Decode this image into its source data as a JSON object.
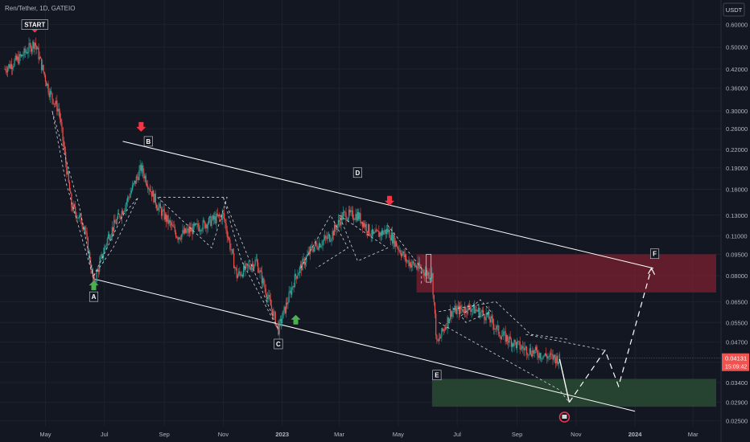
{
  "header": {
    "symbol": "Ren/Tether, 1D, GATEIO",
    "currency_button": "USDT"
  },
  "price_axis": {
    "ticks": [
      "0.60000",
      "0.50000",
      "0.42000",
      "0.36000",
      "0.30000",
      "0.26000",
      "0.22000",
      "0.19000",
      "0.16000",
      "0.13000",
      "0.11000",
      "0.09500",
      "0.08000",
      "0.06500",
      "0.05500",
      "0.04700",
      "0.04000",
      "0.03400",
      "0.02900",
      "0.02500"
    ],
    "last_price": "0.04131",
    "countdown": "15:09:42"
  },
  "time_axis": {
    "ticks": [
      "May",
      "Jul",
      "Sep",
      "Nov",
      "2023",
      "Mar",
      "May",
      "Jul",
      "Sep",
      "Nov",
      "2024",
      "Mar"
    ]
  },
  "annotations": {
    "labels": [
      "START",
      "A",
      "B",
      "C",
      "D",
      "E",
      "F"
    ]
  },
  "colors": {
    "background": "#131722",
    "up_candle": "#26a69a",
    "down_candle": "#ef5350",
    "trendline": "#ffffff",
    "resistance_zone": "#7d2030",
    "support_zone": "#2a4a32",
    "arrow_down": "#f23645",
    "arrow_up": "#4caf50"
  },
  "chart_data": {
    "type": "candlestick",
    "title": "Ren/Tether, 1D, GATEIO",
    "ylabel": "USDT",
    "y_scale": "log",
    "ylim": [
      0.024,
      0.65
    ],
    "x_range": [
      "2022-03-20",
      "2024-03-25"
    ],
    "key_points": [
      {
        "date": "2022-04-20",
        "price": 0.52,
        "label": "START"
      },
      {
        "date": "2022-06-20",
        "price": 0.075,
        "label": "A"
      },
      {
        "date": "2022-08-08",
        "price": 0.235,
        "label": "B"
      },
      {
        "date": "2022-12-28",
        "price": 0.052,
        "label": "C"
      },
      {
        "date": "2023-03-20",
        "price": 0.165,
        "label": "D"
      },
      {
        "date": "2023-06-10",
        "price": 0.04,
        "label": "E"
      },
      {
        "date": "2024-01-18",
        "price": 0.085,
        "label": "F"
      }
    ],
    "price_path": [
      [
        "2022-03-20",
        0.42
      ],
      [
        "2022-04-05",
        0.46
      ],
      [
        "2022-04-20",
        0.52
      ],
      [
        "2022-05-05",
        0.35
      ],
      [
        "2022-05-15",
        0.3
      ],
      [
        "2022-05-28",
        0.14
      ],
      [
        "2022-06-10",
        0.12
      ],
      [
        "2022-06-20",
        0.075
      ],
      [
        "2022-07-05",
        0.11
      ],
      [
        "2022-07-22",
        0.14
      ],
      [
        "2022-08-08",
        0.19
      ],
      [
        "2022-08-25",
        0.14
      ],
      [
        "2022-09-15",
        0.11
      ],
      [
        "2022-10-10",
        0.12
      ],
      [
        "2022-11-01",
        0.13
      ],
      [
        "2022-11-15",
        0.08
      ],
      [
        "2022-12-05",
        0.09
      ],
      [
        "2022-12-28",
        0.052
      ],
      [
        "2023-01-15",
        0.08
      ],
      [
        "2023-02-01",
        0.1
      ],
      [
        "2023-02-20",
        0.11
      ],
      [
        "2023-03-05",
        0.13
      ],
      [
        "2023-03-20",
        0.13
      ],
      [
        "2023-04-05",
        0.11
      ],
      [
        "2023-04-20",
        0.115
      ],
      [
        "2023-05-10",
        0.09
      ],
      [
        "2023-06-05",
        0.08
      ],
      [
        "2023-06-10",
        0.046
      ],
      [
        "2023-06-25",
        0.06
      ],
      [
        "2023-07-15",
        0.062
      ],
      [
        "2023-08-01",
        0.058
      ],
      [
        "2023-08-15",
        0.05
      ],
      [
        "2023-09-05",
        0.045
      ],
      [
        "2023-10-01",
        0.042
      ],
      [
        "2023-10-15",
        0.041
      ]
    ],
    "projection_path": [
      [
        "2023-10-25",
        0.029
      ],
      [
        "2023-12-01",
        0.044
      ],
      [
        "2023-12-15",
        0.033
      ],
      [
        "2024-01-18",
        0.085
      ]
    ],
    "channel_upper": [
      [
        "2022-07-20",
        0.235
      ],
      [
        "2024-01-20",
        0.085
      ]
    ],
    "channel_lower": [
      [
        "2022-06-20",
        0.078
      ],
      [
        "2024-01-01",
        0.027
      ]
    ],
    "resistance_zone": {
      "low": 0.07,
      "high": 0.095,
      "from": "2023-05-20",
      "to": "2024-03-25"
    },
    "support_zone": {
      "low": 0.028,
      "high": 0.035,
      "from": "2023-06-05",
      "to": "2024-03-25"
    },
    "markers": [
      {
        "type": "arrow-down",
        "date": "2022-04-20"
      },
      {
        "type": "arrow-down",
        "date": "2022-08-08"
      },
      {
        "type": "arrow-down",
        "date": "2023-04-22"
      },
      {
        "type": "arrow-up",
        "date": "2022-06-20"
      },
      {
        "type": "arrow-up",
        "date": "2023-01-15"
      }
    ]
  }
}
